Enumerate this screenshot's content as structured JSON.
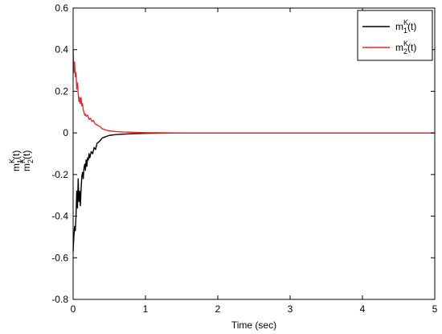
{
  "chart_data": {
    "type": "line",
    "title": "",
    "xlabel": "Time (sec)",
    "ylabel_lines": [
      {
        "base": "m",
        "sub": "1",
        "sup": "K",
        "suffix": "(t)"
      },
      {
        "base": "m",
        "sub": "2",
        "sup": "K",
        "suffix": "(t)"
      }
    ],
    "xlim": [
      0,
      5
    ],
    "ylim": [
      -0.8,
      0.6
    ],
    "xticks": [
      0,
      1,
      2,
      3,
      4,
      5
    ],
    "yticks": [
      -0.8,
      -0.6,
      -0.4,
      -0.2,
      0,
      0.2,
      0.4,
      0.6
    ],
    "xtick_labels": [
      "0",
      "1",
      "2",
      "3",
      "4",
      "5"
    ],
    "ytick_labels": [
      "-0.8",
      "-0.6",
      "-0.4",
      "-0.2",
      "0",
      "0.2",
      "0.4",
      "0.6"
    ],
    "grid": false,
    "legend_position": "top-right",
    "series": [
      {
        "legend": {
          "base": "m",
          "sub": "1",
          "sup": "K",
          "suffix": "(t)"
        },
        "color": "#000000",
        "points": [
          [
            0,
            -0.57
          ],
          [
            0.01,
            -0.5
          ],
          [
            0.02,
            -0.45
          ],
          [
            0.03,
            -0.47
          ],
          [
            0.04,
            -0.4
          ],
          [
            0.05,
            -0.28
          ],
          [
            0.06,
            -0.36
          ],
          [
            0.07,
            -0.22
          ],
          [
            0.08,
            -0.33
          ],
          [
            0.09,
            -0.28
          ],
          [
            0.1,
            -0.35
          ],
          [
            0.11,
            -0.27
          ],
          [
            0.12,
            -0.21
          ],
          [
            0.13,
            -0.19
          ],
          [
            0.14,
            -0.22
          ],
          [
            0.15,
            -0.17
          ],
          [
            0.16,
            -0.15
          ],
          [
            0.17,
            -0.18
          ],
          [
            0.18,
            -0.13
          ],
          [
            0.19,
            -0.16
          ],
          [
            0.2,
            -0.12
          ],
          [
            0.21,
            -0.13
          ],
          [
            0.22,
            -0.1
          ],
          [
            0.23,
            -0.12
          ],
          [
            0.25,
            -0.09
          ],
          [
            0.27,
            -0.1
          ],
          [
            0.29,
            -0.07
          ],
          [
            0.31,
            -0.08
          ],
          [
            0.33,
            -0.05
          ],
          [
            0.35,
            -0.045
          ],
          [
            0.38,
            -0.035
          ],
          [
            0.4,
            -0.025
          ],
          [
            0.45,
            -0.018
          ],
          [
            0.5,
            -0.012
          ],
          [
            0.55,
            -0.01
          ],
          [
            0.6,
            -0.008
          ],
          [
            0.7,
            -0.006
          ],
          [
            0.8,
            -0.004
          ],
          [
            0.9,
            -0.003
          ],
          [
            1.0,
            -0.002
          ],
          [
            1.2,
            -0.001
          ],
          [
            1.5,
            0
          ],
          [
            2.0,
            0
          ],
          [
            2.5,
            0
          ],
          [
            3.0,
            0
          ],
          [
            3.5,
            0
          ],
          [
            4.0,
            0
          ],
          [
            4.5,
            0
          ],
          [
            5.0,
            0
          ]
        ]
      },
      {
        "legend": {
          "base": "m",
          "sub": "2",
          "sup": "K",
          "suffix": "(t)"
        },
        "color": "#e8282a",
        "points": [
          [
            0,
            0.4
          ],
          [
            0.01,
            0.29
          ],
          [
            0.02,
            0.34
          ],
          [
            0.03,
            0.27
          ],
          [
            0.04,
            0.29
          ],
          [
            0.05,
            0.21
          ],
          [
            0.06,
            0.24
          ],
          [
            0.07,
            0.19
          ],
          [
            0.08,
            0.15
          ],
          [
            0.09,
            0.17
          ],
          [
            0.1,
            0.14
          ],
          [
            0.11,
            0.17
          ],
          [
            0.12,
            0.13
          ],
          [
            0.13,
            0.14
          ],
          [
            0.14,
            0.11
          ],
          [
            0.15,
            0.1
          ],
          [
            0.16,
            0.085
          ],
          [
            0.17,
            0.09
          ],
          [
            0.18,
            0.08
          ],
          [
            0.2,
            0.085
          ],
          [
            0.22,
            0.065
          ],
          [
            0.24,
            0.07
          ],
          [
            0.26,
            0.055
          ],
          [
            0.28,
            0.06
          ],
          [
            0.3,
            0.045
          ],
          [
            0.32,
            0.04
          ],
          [
            0.35,
            0.035
          ],
          [
            0.38,
            0.028
          ],
          [
            0.4,
            0.02
          ],
          [
            0.45,
            0.014
          ],
          [
            0.5,
            0.01
          ],
          [
            0.55,
            0.008
          ],
          [
            0.6,
            0.006
          ],
          [
            0.7,
            0.004
          ],
          [
            0.8,
            0.003
          ],
          [
            0.9,
            0.002
          ],
          [
            1.0,
            0.001
          ],
          [
            1.5,
            0
          ],
          [
            2.0,
            0
          ],
          [
            2.5,
            0
          ],
          [
            3.0,
            0
          ],
          [
            3.5,
            0
          ],
          [
            4.0,
            0
          ],
          [
            4.5,
            0
          ],
          [
            5.0,
            0
          ]
        ]
      }
    ]
  }
}
